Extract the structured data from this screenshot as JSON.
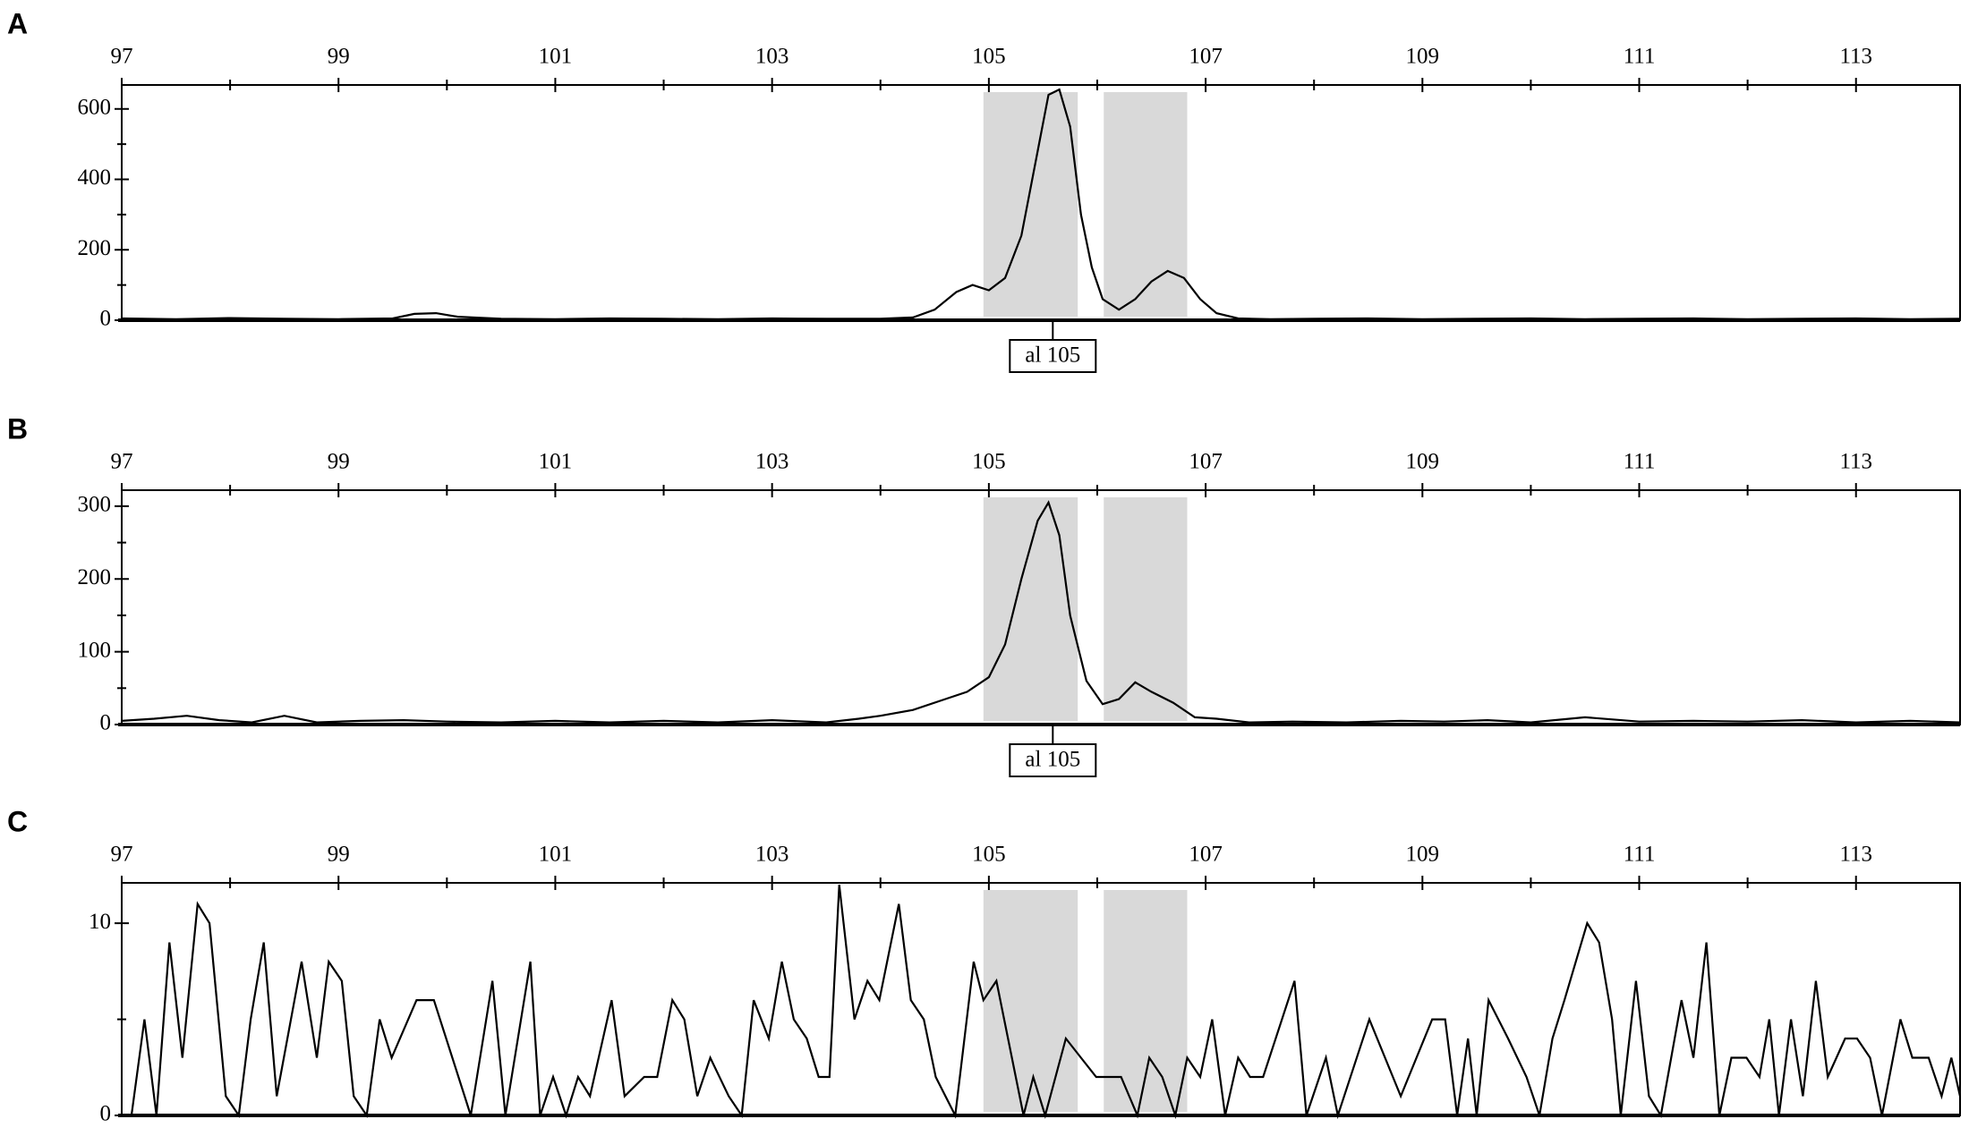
{
  "chart_data": [
    {
      "type": "line",
      "panel_label": "A",
      "color": "#000000",
      "shade_color": "#d9d9d9",
      "xlim": [
        97,
        113.96
      ],
      "xticks": [
        97,
        99,
        101,
        103,
        105,
        107,
        109,
        111,
        113
      ],
      "xminor_ticks": [
        98,
        100,
        102,
        104,
        106,
        108,
        110,
        112
      ],
      "ylim": [
        0,
        668
      ],
      "yticks": [
        0,
        200,
        400,
        600
      ],
      "yminor_ticks": [
        100,
        300,
        500
      ],
      "shaded_ranges": [
        [
          104.95,
          105.82
        ],
        [
          106.06,
          106.83
        ]
      ],
      "annotation": {
        "label": "al 105",
        "x": 105.59
      },
      "x": [
        97,
        97.5,
        98,
        98.5,
        99,
        99.5,
        99.7,
        99.9,
        100.1,
        100.5,
        101,
        101.5,
        102,
        102.5,
        103,
        103.5,
        104,
        104.3,
        104.5,
        104.7,
        104.85,
        105.0,
        105.15,
        105.3,
        105.45,
        105.55,
        105.65,
        105.75,
        105.85,
        105.95,
        106.05,
        106.2,
        106.35,
        106.5,
        106.65,
        106.8,
        106.95,
        107.1,
        107.3,
        107.6,
        108,
        108.5,
        109,
        109.5,
        110,
        110.5,
        111,
        111.5,
        112,
        112.5,
        113,
        113.5,
        113.96
      ],
      "values": [
        5,
        3,
        6,
        4,
        3,
        5,
        18,
        20,
        10,
        4,
        3,
        5,
        4,
        3,
        5,
        4,
        4,
        8,
        30,
        80,
        100,
        85,
        120,
        240,
        480,
        640,
        655,
        550,
        300,
        150,
        60,
        30,
        60,
        110,
        140,
        120,
        60,
        20,
        5,
        3,
        4,
        5,
        3,
        4,
        5,
        3,
        4,
        5,
        3,
        4,
        5,
        3,
        4
      ]
    },
    {
      "type": "line",
      "panel_label": "B",
      "color": "#000000",
      "shade_color": "#d9d9d9",
      "xlim": [
        97,
        113.96
      ],
      "xticks": [
        97,
        99,
        101,
        103,
        105,
        107,
        109,
        111,
        113
      ],
      "xminor_ticks": [
        98,
        100,
        102,
        104,
        106,
        108,
        110,
        112
      ],
      "ylim": [
        0,
        322
      ],
      "yticks": [
        0,
        100,
        200,
        300
      ],
      "yminor_ticks": [
        50,
        150,
        250
      ],
      "shaded_ranges": [
        [
          104.95,
          105.82
        ],
        [
          106.06,
          106.83
        ]
      ],
      "annotation": {
        "label": "al 105",
        "x": 105.59
      },
      "x": [
        97,
        97.3,
        97.6,
        97.9,
        98.2,
        98.5,
        98.8,
        99.2,
        99.6,
        100,
        100.5,
        101,
        101.5,
        102,
        102.5,
        103,
        103.5,
        103.8,
        104,
        104.3,
        104.6,
        104.8,
        105.0,
        105.15,
        105.3,
        105.45,
        105.55,
        105.65,
        105.75,
        105.9,
        106.05,
        106.2,
        106.35,
        106.5,
        106.7,
        106.9,
        107.1,
        107.4,
        107.8,
        108.3,
        108.8,
        109.2,
        109.6,
        110,
        110.5,
        111,
        111.5,
        112,
        112.5,
        113,
        113.5,
        113.96
      ],
      "values": [
        5,
        8,
        12,
        6,
        3,
        12,
        3,
        5,
        6,
        4,
        3,
        5,
        3,
        5,
        3,
        6,
        3,
        8,
        12,
        20,
        35,
        45,
        65,
        110,
        200,
        280,
        305,
        260,
        150,
        60,
        28,
        35,
        58,
        45,
        30,
        10,
        8,
        3,
        4,
        3,
        5,
        4,
        6,
        3,
        10,
        4,
        5,
        4,
        6,
        3,
        5,
        3
      ]
    },
    {
      "type": "line",
      "panel_label": "C",
      "color": "#000000",
      "shade_color": "#d9d9d9",
      "xlim": [
        97,
        113.96
      ],
      "xticks": [
        97,
        99,
        101,
        103,
        105,
        107,
        109,
        111,
        113
      ],
      "xminor_ticks": [
        98,
        100,
        102,
        104,
        106,
        108,
        110,
        112
      ],
      "ylim": [
        0,
        12.1
      ],
      "yticks": [
        0,
        10
      ],
      "yminor_ticks": [
        5
      ],
      "shaded_ranges": [
        [
          104.95,
          105.82
        ],
        [
          106.06,
          106.83
        ]
      ],
      "x": [
        97.0,
        97.09,
        97.21,
        97.32,
        97.44,
        97.56,
        97.7,
        97.81,
        97.96,
        98.08,
        98.19,
        98.31,
        98.43,
        98.66,
        98.8,
        98.91,
        99.03,
        99.14,
        99.26,
        99.38,
        99.49,
        99.72,
        99.88,
        100.05,
        100.22,
        100.42,
        100.54,
        100.77,
        100.86,
        100.98,
        101.1,
        101.21,
        101.32,
        101.52,
        101.64,
        101.82,
        101.94,
        102.08,
        102.19,
        102.31,
        102.43,
        102.6,
        102.72,
        102.83,
        102.97,
        103.09,
        103.2,
        103.32,
        103.43,
        103.53,
        103.62,
        103.76,
        103.88,
        103.99,
        104.17,
        104.28,
        104.4,
        104.51,
        104.69,
        104.86,
        104.95,
        105.07,
        105.32,
        105.41,
        105.52,
        105.71,
        105.85,
        105.99,
        106.22,
        106.37,
        106.48,
        106.6,
        106.72,
        106.83,
        106.95,
        107.06,
        107.18,
        107.3,
        107.41,
        107.53,
        107.82,
        107.93,
        108.11,
        108.22,
        108.51,
        108.8,
        109.09,
        109.21,
        109.32,
        109.42,
        109.5,
        109.61,
        109.79,
        109.96,
        110.08,
        110.2,
        110.31,
        110.52,
        110.63,
        110.75,
        110.83,
        110.97,
        111.09,
        111.2,
        111.39,
        111.5,
        111.62,
        111.74,
        111.85,
        111.99,
        112.11,
        112.2,
        112.29,
        112.4,
        112.51,
        112.63,
        112.74,
        112.9,
        113.01,
        113.13,
        113.24,
        113.41,
        113.52,
        113.67,
        113.79,
        113.88,
        113.96
      ],
      "values": [
        0,
        0,
        5,
        0,
        9,
        3,
        11,
        10,
        1,
        0,
        5,
        9,
        1,
        8,
        3,
        8,
        7,
        1,
        0,
        5,
        3,
        6,
        6,
        3,
        0,
        7,
        0,
        8,
        0,
        2,
        0,
        2,
        1,
        6,
        1,
        2,
        2,
        6,
        5,
        1,
        3,
        1,
        0,
        6,
        4,
        8,
        5,
        4,
        2,
        2,
        12,
        5,
        7,
        6,
        11,
        6,
        5,
        2,
        0,
        8,
        6,
        7,
        0,
        2,
        0,
        4,
        3,
        2,
        2,
        0,
        3,
        2,
        0,
        3,
        2,
        5,
        0,
        3,
        2,
        2,
        7,
        0,
        3,
        0,
        5,
        1,
        5,
        5,
        0,
        4,
        0,
        6,
        4,
        2,
        0,
        4,
        6,
        10,
        9,
        5,
        0,
        7,
        1,
        0,
        6,
        3,
        9,
        0,
        3,
        3,
        2,
        5,
        0,
        5,
        1,
        7,
        2,
        4,
        4,
        3,
        0,
        5,
        3,
        3,
        1,
        3,
        1
      ]
    }
  ]
}
